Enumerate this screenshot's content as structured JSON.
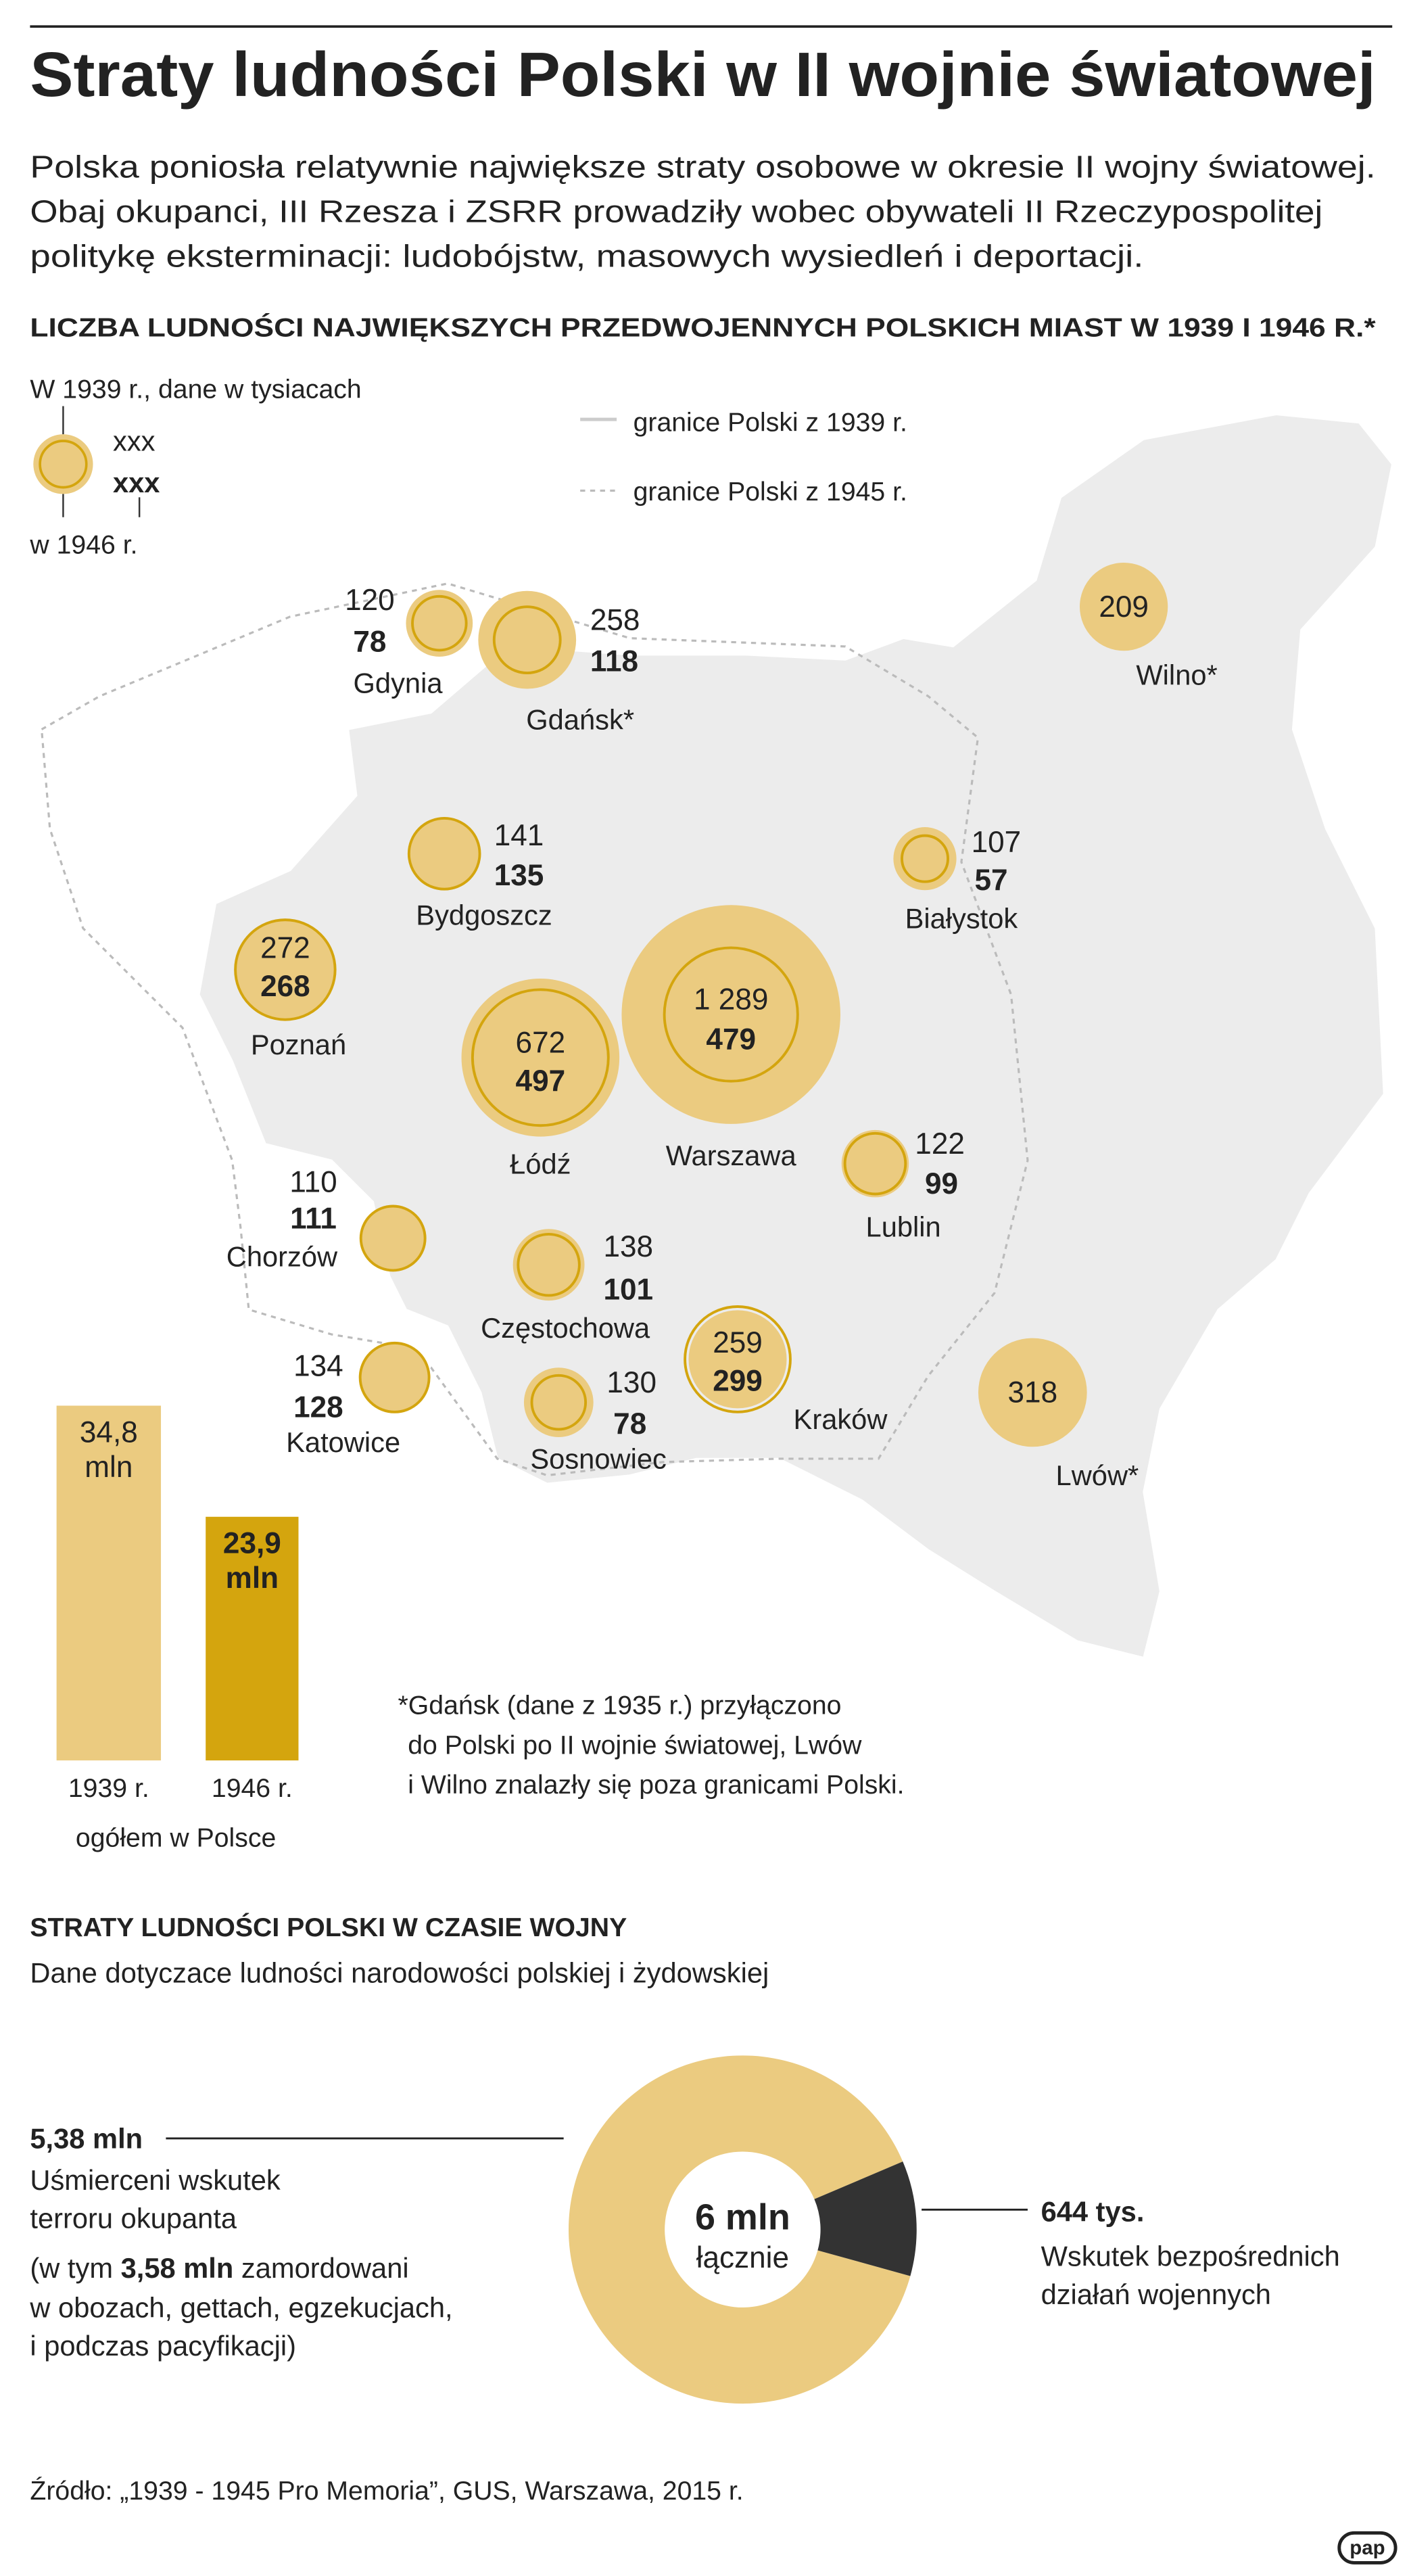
{
  "title": "Straty ludności Polski w II wojnie światowej",
  "intro": [
    "Polska poniosła relatywnie największe straty osobowe w okresie II wojny światowej.",
    "Obaj okupanci, III Rzesza i ZSRR prowadziły wobec obywateli II Rzeczypospolitej",
    "politykę eksterminacji: ludobójstw, masowych wysiedleń i deportacji."
  ],
  "map": {
    "heading": "LICZBA LUDNOŚCI NAJWIĘKSZYCH PRZEDWOJENNYCH POLSKICH MIAST W 1939 I 1946 R.*",
    "legend": {
      "caption_top": "W 1939 r., dane w tysiacach",
      "sample_1939": "xxx",
      "sample_1946": "xxx",
      "caption_bottom": "w 1946 r.",
      "border_1939": "granice Polski z 1939 r.",
      "border_1945": "granice Polski z 1945 r."
    },
    "cities": [
      {
        "name": "Gdynia",
        "pop_1939": 120,
        "pop_1946": 78
      },
      {
        "name": "Gdańsk*",
        "pop_1939": 258,
        "pop_1946": 118
      },
      {
        "name": "Wilno*",
        "pop_1939": 209,
        "pop_1946": null
      },
      {
        "name": "Bydgoszcz",
        "pop_1939": 141,
        "pop_1946": 135
      },
      {
        "name": "Białystok",
        "pop_1939": 107,
        "pop_1946": 57
      },
      {
        "name": "Poznań",
        "pop_1939": 272,
        "pop_1946": 268
      },
      {
        "name": "Łódź",
        "pop_1939": 672,
        "pop_1946": 497
      },
      {
        "name": "Warszawa",
        "pop_1939": {
          "value": 1289,
          "label": "1 289"
        },
        "pop_1946": 479
      },
      {
        "name": "Lublin",
        "pop_1939": 122,
        "pop_1946": 99
      },
      {
        "name": "Chorzów",
        "pop_1939": 110,
        "pop_1946": 111
      },
      {
        "name": "Częstochowa",
        "pop_1939": 138,
        "pop_1946": 101
      },
      {
        "name": "Katowice",
        "pop_1939": 134,
        "pop_1946": 128
      },
      {
        "name": "Kraków",
        "pop_1939": 259,
        "pop_1946": 299
      },
      {
        "name": "Sosnowiec",
        "pop_1939": 130,
        "pop_1946": 78
      },
      {
        "name": "Lwów*",
        "pop_1939": 318,
        "pop_1946": null
      }
    ],
    "footnote": [
      "*Gdańsk (dane z 1935 r.) przyłączono",
      "do Polski po II wojnie światowej, Lwów",
      "i Wilno znalazły się poza granicami Polski."
    ]
  },
  "chart_data": [
    {
      "type": "bar",
      "categories": [
        "1939 r.",
        "1946 r."
      ],
      "values": [
        34.8,
        23.9
      ],
      "value_labels": [
        "34,8 mln",
        "23,9 mln"
      ],
      "colors": [
        "#ebcb80",
        "#d4a50e"
      ],
      "label_colors": [
        "#222222",
        "#ffffff"
      ],
      "xlabel": "ogółem w Polsce"
    },
    {
      "type": "pie",
      "title": "STRATY LUDNOŚCI POLSKI W CZASIE WOJNY",
      "subtitle": "Dane dotyczace ludności narodowości polskiej i żydowskiej",
      "categories": [
        [
          "Uśmierceni wskutek",
          "terroru okupanta"
        ],
        [
          "Wskutek bezpośrednich",
          "działań wojennych"
        ]
      ],
      "values": [
        5380000,
        644000
      ],
      "value_labels": [
        "5,38 mln",
        "644 tys."
      ],
      "colors": [
        "#ebcb80",
        "#333333"
      ],
      "total": {
        "value": 6000000,
        "label": "6 mln"
      },
      "total_caption": "łącznie",
      "note": {
        "before": "(w tym",
        "bold": {
          "value": 3580000,
          "label": "3,58 mln"
        },
        "after": "zamordowani",
        "lines": [
          "w obozach, gettach, egzekucjach,",
          "i podczas pacyfikacji)"
        ]
      }
    }
  ],
  "source": "Źródło: „1939 - 1945 Pro Memoria”, GUS, Warszawa, 2015 r.",
  "logo": "pap"
}
